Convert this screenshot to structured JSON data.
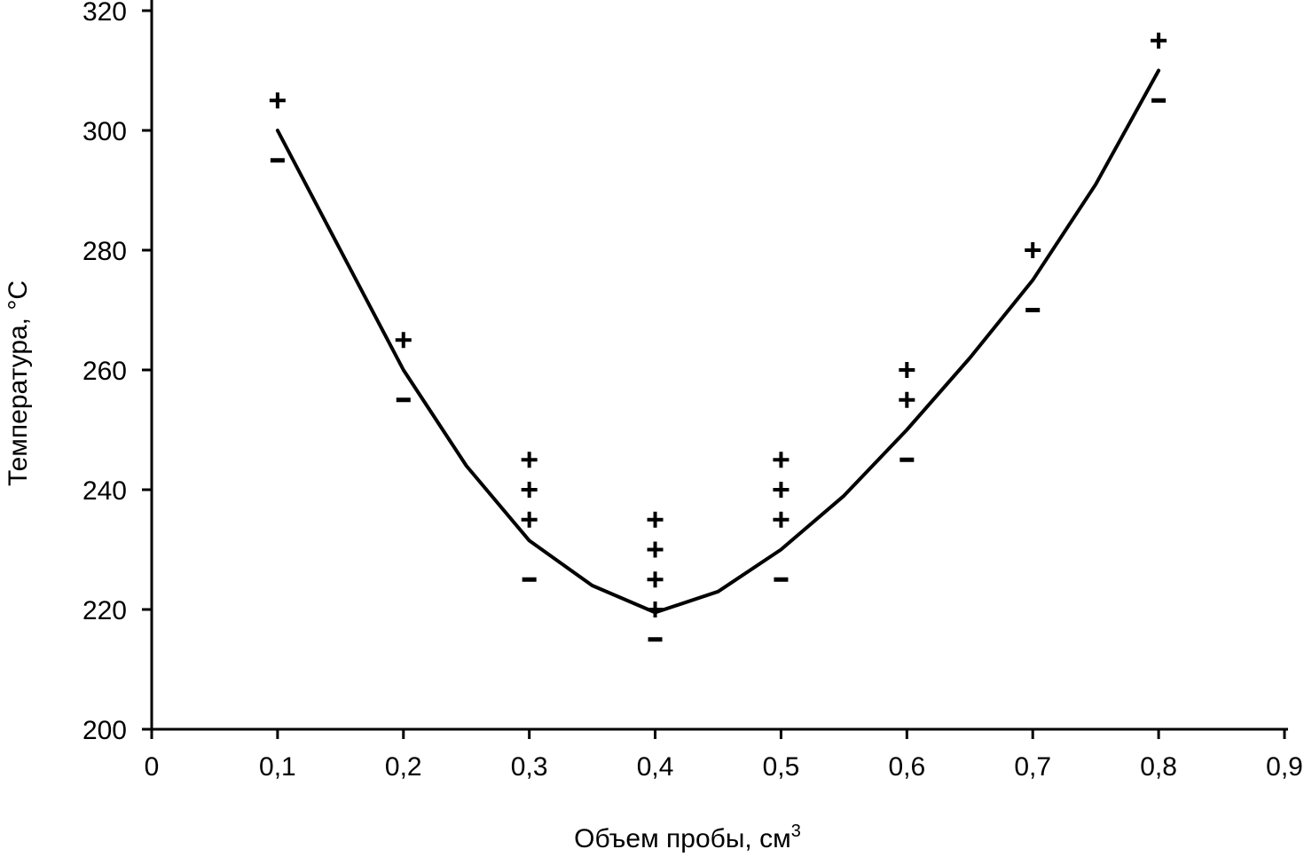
{
  "chart_data": {
    "type": "scatter",
    "title": "",
    "xlabel": "Объем пробы, см",
    "xlabel_sup": "3",
    "ylabel": "Температура, °С",
    "xlim": [
      0,
      0.9
    ],
    "ylim": [
      200,
      320
    ],
    "grid": false,
    "x_ticks": [
      0,
      0.1,
      0.2,
      0.3,
      0.4,
      0.5,
      0.6,
      0.7,
      0.8,
      0.9
    ],
    "x_tick_labels": [
      "0",
      "0,1",
      "0,2",
      "0,3",
      "0,4",
      "0,5",
      "0,6",
      "0,7",
      "0,8",
      "0,9"
    ],
    "y_ticks": [
      200,
      220,
      240,
      260,
      280,
      300,
      320
    ],
    "y_tick_labels": [
      "200",
      "220",
      "240",
      "260",
      "280",
      "300",
      "320"
    ],
    "series": [
      {
        "name": "+",
        "marker": "plus",
        "points": [
          [
            0.1,
            305
          ],
          [
            0.2,
            265
          ],
          [
            0.3,
            245
          ],
          [
            0.3,
            240
          ],
          [
            0.3,
            235
          ],
          [
            0.4,
            235
          ],
          [
            0.4,
            230
          ],
          [
            0.4,
            225
          ],
          [
            0.4,
            220
          ],
          [
            0.5,
            245
          ],
          [
            0.5,
            240
          ],
          [
            0.5,
            235
          ],
          [
            0.6,
            260
          ],
          [
            0.6,
            255
          ],
          [
            0.7,
            280
          ],
          [
            0.8,
            315
          ]
        ]
      },
      {
        "name": "-",
        "marker": "minus",
        "points": [
          [
            0.1,
            295
          ],
          [
            0.2,
            255
          ],
          [
            0.3,
            225
          ],
          [
            0.4,
            215
          ],
          [
            0.5,
            225
          ],
          [
            0.6,
            245
          ],
          [
            0.7,
            270
          ],
          [
            0.8,
            305
          ]
        ]
      },
      {
        "name": "curve",
        "marker": "line",
        "points": [
          [
            0.1,
            300
          ],
          [
            0.15,
            280
          ],
          [
            0.2,
            260
          ],
          [
            0.25,
            244
          ],
          [
            0.3,
            231.5
          ],
          [
            0.35,
            224
          ],
          [
            0.4,
            219.5
          ],
          [
            0.45,
            223
          ],
          [
            0.5,
            230
          ],
          [
            0.55,
            239
          ],
          [
            0.6,
            250
          ],
          [
            0.65,
            262
          ],
          [
            0.7,
            275
          ],
          [
            0.75,
            291
          ],
          [
            0.8,
            310
          ]
        ]
      }
    ]
  }
}
